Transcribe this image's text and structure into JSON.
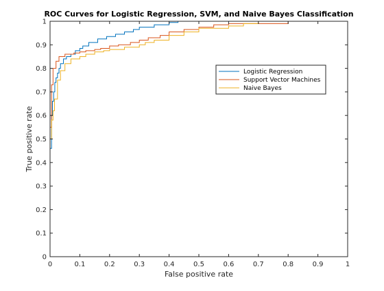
{
  "chart_data": {
    "type": "line",
    "title": "ROC Curves for Logistic Regression, SVM, and Naive Bayes Classification",
    "xlabel": "False positive rate",
    "ylabel": "True positive rate",
    "xlim": [
      0,
      1
    ],
    "ylim": [
      0,
      1
    ],
    "xticks": [
      "0",
      "0.1",
      "0.2",
      "0.3",
      "0.4",
      "0.5",
      "0.6",
      "0.7",
      "0.8",
      "0.9",
      "1"
    ],
    "yticks": [
      "0",
      "0.1",
      "0.2",
      "0.3",
      "0.4",
      "0.5",
      "0.6",
      "0.7",
      "0.8",
      "0.9",
      "1"
    ],
    "grid": false,
    "legend_position": "upper-right",
    "series": [
      {
        "name": "Logistic Regression",
        "color": "#0072BD",
        "x": [
          0,
          0,
          0.005,
          0.005,
          0.008,
          0.008,
          0.012,
          0.012,
          0.016,
          0.016,
          0.02,
          0.02,
          0.025,
          0.025,
          0.03,
          0.03,
          0.035,
          0.035,
          0.045,
          0.045,
          0.055,
          0.055,
          0.07,
          0.07,
          0.085,
          0.085,
          0.1,
          0.1,
          0.11,
          0.11,
          0.13,
          0.13,
          0.16,
          0.16,
          0.19,
          0.19,
          0.22,
          0.22,
          0.25,
          0.25,
          0.28,
          0.28,
          0.3,
          0.3,
          0.35,
          0.35,
          0.4,
          0.4,
          0.43,
          0.43,
          1
        ],
        "y": [
          0,
          0.46,
          0.46,
          0.6,
          0.6,
          0.66,
          0.66,
          0.7,
          0.7,
          0.74,
          0.74,
          0.76,
          0.76,
          0.78,
          0.78,
          0.8,
          0.8,
          0.82,
          0.82,
          0.84,
          0.84,
          0.85,
          0.85,
          0.86,
          0.86,
          0.875,
          0.875,
          0.885,
          0.885,
          0.895,
          0.895,
          0.91,
          0.91,
          0.925,
          0.925,
          0.935,
          0.935,
          0.945,
          0.945,
          0.955,
          0.955,
          0.965,
          0.965,
          0.975,
          0.975,
          0.985,
          0.985,
          0.995,
          0.995,
          1,
          1
        ]
      },
      {
        "name": "Support Vector Machines",
        "color": "#D95319",
        "x": [
          0,
          0,
          0.005,
          0.005,
          0.01,
          0.01,
          0.02,
          0.02,
          0.03,
          0.03,
          0.05,
          0.05,
          0.08,
          0.08,
          0.1,
          0.1,
          0.12,
          0.12,
          0.15,
          0.15,
          0.17,
          0.17,
          0.2,
          0.2,
          0.23,
          0.23,
          0.27,
          0.27,
          0.3,
          0.3,
          0.33,
          0.33,
          0.37,
          0.37,
          0.4,
          0.4,
          0.45,
          0.45,
          0.5,
          0.5,
          0.55,
          0.55,
          0.6,
          0.6,
          0.8,
          0.8,
          1
        ],
        "y": [
          0,
          0.55,
          0.55,
          0.73,
          0.73,
          0.8,
          0.8,
          0.83,
          0.83,
          0.85,
          0.85,
          0.86,
          0.86,
          0.865,
          0.865,
          0.87,
          0.87,
          0.875,
          0.875,
          0.88,
          0.88,
          0.885,
          0.885,
          0.895,
          0.895,
          0.9,
          0.9,
          0.91,
          0.91,
          0.92,
          0.92,
          0.93,
          0.93,
          0.94,
          0.94,
          0.955,
          0.955,
          0.965,
          0.965,
          0.975,
          0.975,
          0.985,
          0.985,
          0.99,
          0.99,
          1,
          1
        ]
      },
      {
        "name": "Naive Bayes",
        "color": "#EDB120",
        "x": [
          0,
          0,
          0.005,
          0.005,
          0.01,
          0.01,
          0.015,
          0.015,
          0.025,
          0.025,
          0.035,
          0.035,
          0.05,
          0.05,
          0.07,
          0.07,
          0.1,
          0.1,
          0.12,
          0.12,
          0.15,
          0.15,
          0.18,
          0.18,
          0.2,
          0.2,
          0.25,
          0.25,
          0.3,
          0.3,
          0.32,
          0.32,
          0.35,
          0.35,
          0.4,
          0.4,
          0.45,
          0.45,
          0.5,
          0.5,
          0.6,
          0.6,
          0.65,
          0.65,
          0.7,
          0.7,
          1
        ],
        "y": [
          0,
          0.5,
          0.5,
          0.58,
          0.58,
          0.62,
          0.62,
          0.67,
          0.67,
          0.75,
          0.75,
          0.79,
          0.79,
          0.82,
          0.82,
          0.84,
          0.84,
          0.85,
          0.85,
          0.86,
          0.86,
          0.87,
          0.87,
          0.875,
          0.875,
          0.88,
          0.88,
          0.89,
          0.89,
          0.9,
          0.9,
          0.91,
          0.91,
          0.92,
          0.92,
          0.94,
          0.94,
          0.955,
          0.955,
          0.97,
          0.97,
          0.98,
          0.98,
          0.99,
          0.99,
          1,
          1
        ]
      }
    ]
  }
}
